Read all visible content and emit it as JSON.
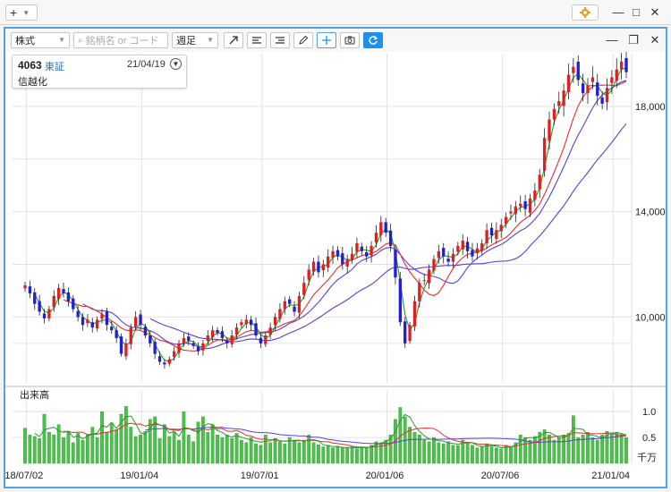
{
  "window": {
    "new_label": "+",
    "minimize_icon": "—",
    "maximize_icon": "□",
    "close_icon": "✕"
  },
  "toolbar": {
    "category": "株式",
    "search_placeholder": "銘柄名 or コード",
    "period": "週足"
  },
  "panel_controls": {
    "minimize_icon": "—",
    "restore_icon": "❐",
    "close_icon": "✕"
  },
  "info": {
    "code": "4063",
    "market": "東証",
    "date": "21/04/19",
    "name": "信越化"
  },
  "volume_panel": {
    "title": "出来高",
    "unit": "千万"
  },
  "colors": {
    "accent": "#1e90e8",
    "up": "#e02020",
    "down": "#2020d0",
    "ma_short": "#2c9a2c",
    "ma_mid": "#e03030",
    "ma_long": "#5a3fcf",
    "volume": "#4cc24c"
  },
  "chart_data": {
    "type": "candlestick",
    "y_ticks": [
      "10,000",
      "14,000",
      "18,000"
    ],
    "y_tick_values": [
      10000,
      14000,
      18000
    ],
    "x_ticks": [
      "18/07/02",
      "19/01/04",
      "19/07/01",
      "20/01/06",
      "20/07/06",
      "21/01/04"
    ],
    "ylim": [
      7500,
      20000
    ],
    "volume_ticks": [
      "1.0",
      "0.5"
    ],
    "volume_tick_values": [
      1.0,
      0.5
    ],
    "volume_ylim": [
      0,
      1.4
    ],
    "close_series": [
      11200,
      10900,
      10500,
      10200,
      9950,
      10300,
      10800,
      11100,
      10900,
      10600,
      10300,
      10000,
      9700,
      9900,
      9600,
      9900,
      10100,
      9700,
      9500,
      9200,
      8600,
      9000,
      9600,
      10000,
      9700,
      9300,
      9000,
      8600,
      8300,
      8200,
      8400,
      8700,
      9000,
      9200,
      9100,
      8900,
      8700,
      9000,
      9300,
      9500,
      9400,
      9200,
      9000,
      9300,
      9600,
      9800,
      9900,
      9700,
      9300,
      9000,
      9300,
      9600,
      10000,
      10300,
      10600,
      10500,
      10200,
      10800,
      11300,
      11800,
      12100,
      11700,
      12000,
      12300,
      12500,
      12300,
      12000,
      12200,
      12400,
      12800,
      12500,
      12300,
      12700,
      13200,
      13600,
      13200,
      12700,
      11500,
      9800,
      9000,
      9700,
      10600,
      11300,
      11400,
      11800,
      12200,
      12500,
      12300,
      12100,
      12400,
      12700,
      12900,
      12500,
      12300,
      12600,
      12800,
      13300,
      13100,
      13300,
      13500,
      13800,
      14000,
      14200,
      14300,
      14100,
      14500,
      14800,
      15400,
      16800,
      17500,
      17900,
      18200,
      18600,
      19200,
      19500,
      19000,
      18500,
      18800,
      19100,
      18400,
      18100,
      18700,
      19100,
      19400,
      19700,
      19300
    ],
    "volume_series": [
      0.68,
      0.55,
      0.52,
      0.48,
      0.95,
      0.6,
      0.55,
      0.75,
      0.5,
      0.62,
      0.4,
      0.58,
      0.45,
      0.55,
      0.7,
      0.5,
      1.0,
      0.6,
      0.78,
      0.65,
      0.95,
      1.1,
      0.7,
      0.52,
      0.55,
      0.62,
      0.85,
      0.9,
      0.48,
      0.75,
      0.52,
      0.6,
      0.45,
      1.0,
      0.55,
      0.42,
      0.8,
      0.9,
      0.6,
      0.75,
      0.55,
      0.5,
      0.55,
      0.48,
      0.58,
      0.45,
      0.4,
      0.5,
      0.38,
      0.35,
      0.55,
      0.4,
      0.48,
      0.42,
      0.38,
      0.5,
      0.45,
      0.4,
      0.42,
      0.55,
      0.4,
      0.36,
      0.32,
      0.35,
      0.3,
      0.33,
      0.3,
      0.3,
      0.32,
      0.28,
      0.32,
      0.3,
      0.35,
      0.42,
      0.4,
      0.45,
      0.55,
      0.85,
      1.08,
      0.9,
      0.7,
      0.6,
      0.55,
      0.45,
      0.42,
      0.5,
      0.4,
      0.38,
      0.42,
      0.35,
      0.35,
      0.45,
      0.4,
      0.35,
      0.3,
      0.33,
      0.38,
      0.32,
      0.3,
      0.28,
      0.35,
      0.32,
      0.4,
      0.55,
      0.5,
      0.45,
      0.52,
      0.6,
      0.65,
      0.55,
      0.45,
      0.5,
      0.55,
      0.58,
      0.92,
      0.5,
      0.55,
      0.6,
      0.5,
      0.45,
      0.55,
      0.62,
      0.58,
      0.6,
      0.55,
      0.5
    ]
  }
}
